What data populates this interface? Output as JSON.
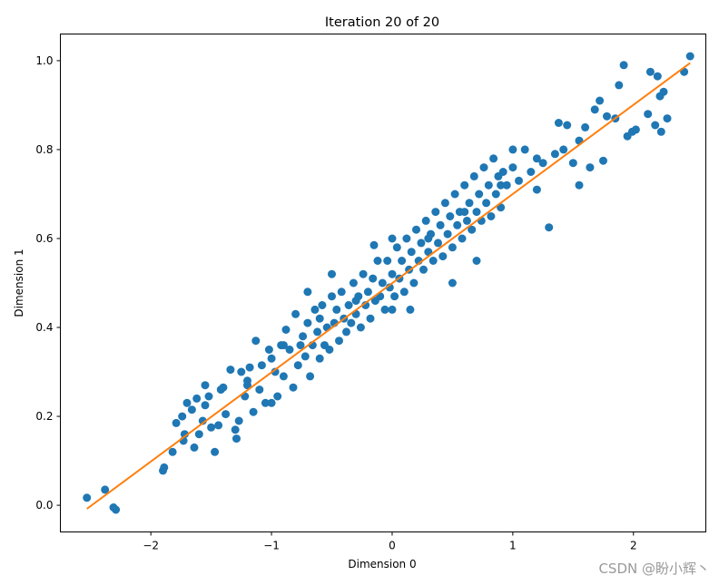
{
  "chart_data": {
    "type": "scatter",
    "title": "Iteration 20 of 20",
    "xlabel": "Dimension 0",
    "ylabel": "Dimension 1",
    "xlim": [
      -2.75,
      2.6
    ],
    "ylim": [
      -0.06,
      1.06
    ],
    "xticks": [
      -2,
      -1,
      0,
      1,
      2
    ],
    "yticks": [
      0.0,
      0.2,
      0.4,
      0.6,
      0.8,
      1.0
    ],
    "xtick_labels": [
      "−2",
      "−1",
      "0",
      "1",
      "2"
    ],
    "ytick_labels": [
      "0.0",
      "0.2",
      "0.4",
      "0.6",
      "0.8",
      "1.0"
    ],
    "grid": false,
    "point_color": "#1f77b4",
    "line_color": "#ff7f0e",
    "points": [
      [
        -2.53,
        0.017
      ],
      [
        -2.38,
        0.035
      ],
      [
        -2.31,
        -0.005
      ],
      [
        -2.29,
        -0.01
      ],
      [
        -1.9,
        0.078
      ],
      [
        -1.89,
        0.085
      ],
      [
        -1.82,
        0.12
      ],
      [
        -1.79,
        0.185
      ],
      [
        -1.74,
        0.2
      ],
      [
        -1.73,
        0.145
      ],
      [
        -1.72,
        0.16
      ],
      [
        -1.7,
        0.23
      ],
      [
        -1.66,
        0.215
      ],
      [
        -1.64,
        0.13
      ],
      [
        -1.62,
        0.24
      ],
      [
        -1.6,
        0.16
      ],
      [
        -1.57,
        0.19
      ],
      [
        -1.55,
        0.225
      ],
      [
        -1.52,
        0.245
      ],
      [
        -1.5,
        0.175
      ],
      [
        -1.47,
        0.12
      ],
      [
        -1.44,
        0.18
      ],
      [
        -1.42,
        0.26
      ],
      [
        -1.4,
        0.265
      ],
      [
        -1.38,
        0.205
      ],
      [
        -1.34,
        0.305
      ],
      [
        -1.3,
        0.17
      ],
      [
        -1.29,
        0.15
      ],
      [
        -1.27,
        0.19
      ],
      [
        -1.25,
        0.3
      ],
      [
        -1.22,
        0.245
      ],
      [
        -1.2,
        0.27
      ],
      [
        -1.18,
        0.31
      ],
      [
        -1.15,
        0.21
      ],
      [
        -1.13,
        0.37
      ],
      [
        -1.1,
        0.26
      ],
      [
        -1.08,
        0.315
      ],
      [
        -1.05,
        0.23
      ],
      [
        -1.02,
        0.35
      ],
      [
        -1.0,
        0.33
      ],
      [
        -0.97,
        0.3
      ],
      [
        -0.95,
        0.245
      ],
      [
        -0.92,
        0.36
      ],
      [
        -0.9,
        0.29
      ],
      [
        -0.88,
        0.395
      ],
      [
        -0.85,
        0.35
      ],
      [
        -0.82,
        0.265
      ],
      [
        -0.8,
        0.43
      ],
      [
        -0.78,
        0.315
      ],
      [
        -0.76,
        0.36
      ],
      [
        -0.74,
        0.38
      ],
      [
        -0.72,
        0.335
      ],
      [
        -0.7,
        0.41
      ],
      [
        -0.68,
        0.29
      ],
      [
        -0.66,
        0.36
      ],
      [
        -0.64,
        0.44
      ],
      [
        -0.62,
        0.39
      ],
      [
        -0.6,
        0.33
      ],
      [
        -0.58,
        0.45
      ],
      [
        -0.56,
        0.36
      ],
      [
        -0.54,
        0.4
      ],
      [
        -0.52,
        0.35
      ],
      [
        -0.5,
        0.47
      ],
      [
        -0.48,
        0.41
      ],
      [
        -0.46,
        0.44
      ],
      [
        -0.44,
        0.37
      ],
      [
        -0.42,
        0.48
      ],
      [
        -0.4,
        0.42
      ],
      [
        -0.38,
        0.39
      ],
      [
        -0.36,
        0.45
      ],
      [
        -0.34,
        0.41
      ],
      [
        -0.32,
        0.5
      ],
      [
        -0.3,
        0.43
      ],
      [
        -0.28,
        0.47
      ],
      [
        -0.26,
        0.4
      ],
      [
        -0.24,
        0.52
      ],
      [
        -0.22,
        0.45
      ],
      [
        -0.2,
        0.48
      ],
      [
        -0.18,
        0.42
      ],
      [
        -0.16,
        0.51
      ],
      [
        -0.14,
        0.46
      ],
      [
        -0.12,
        0.55
      ],
      [
        -0.1,
        0.47
      ],
      [
        -0.08,
        0.5
      ],
      [
        -0.06,
        0.44
      ],
      [
        -0.04,
        0.55
      ],
      [
        -0.02,
        0.49
      ],
      [
        0.0,
        0.52
      ],
      [
        0.02,
        0.47
      ],
      [
        0.04,
        0.58
      ],
      [
        0.06,
        0.51
      ],
      [
        0.08,
        0.55
      ],
      [
        0.1,
        0.48
      ],
      [
        0.12,
        0.6
      ],
      [
        0.14,
        0.53
      ],
      [
        0.16,
        0.57
      ],
      [
        0.18,
        0.5
      ],
      [
        0.2,
        0.62
      ],
      [
        0.22,
        0.55
      ],
      [
        0.24,
        0.59
      ],
      [
        0.26,
        0.53
      ],
      [
        0.28,
        0.64
      ],
      [
        0.3,
        0.57
      ],
      [
        0.32,
        0.61
      ],
      [
        0.34,
        0.55
      ],
      [
        0.36,
        0.66
      ],
      [
        0.38,
        0.59
      ],
      [
        0.4,
        0.63
      ],
      [
        0.42,
        0.56
      ],
      [
        0.44,
        0.68
      ],
      [
        0.46,
        0.61
      ],
      [
        0.48,
        0.65
      ],
      [
        0.5,
        0.58
      ],
      [
        0.52,
        0.7
      ],
      [
        0.54,
        0.63
      ],
      [
        0.56,
        0.66
      ],
      [
        0.58,
        0.6
      ],
      [
        0.6,
        0.72
      ],
      [
        0.62,
        0.64
      ],
      [
        0.64,
        0.68
      ],
      [
        0.66,
        0.62
      ],
      [
        0.68,
        0.74
      ],
      [
        0.7,
        0.66
      ],
      [
        0.72,
        0.7
      ],
      [
        0.74,
        0.64
      ],
      [
        0.76,
        0.76
      ],
      [
        0.78,
        0.68
      ],
      [
        0.8,
        0.72
      ],
      [
        0.82,
        0.65
      ],
      [
        0.84,
        0.78
      ],
      [
        0.86,
        0.7
      ],
      [
        0.88,
        0.74
      ],
      [
        0.9,
        0.67
      ],
      [
        0.92,
        0.75
      ],
      [
        0.95,
        0.72
      ],
      [
        1.0,
        0.76
      ],
      [
        1.05,
        0.73
      ],
      [
        1.1,
        0.8
      ],
      [
        1.15,
        0.75
      ],
      [
        1.2,
        0.71
      ],
      [
        1.25,
        0.77
      ],
      [
        1.3,
        0.625
      ],
      [
        1.35,
        0.79
      ],
      [
        1.38,
        0.86
      ],
      [
        1.42,
        0.8
      ],
      [
        1.45,
        0.855
      ],
      [
        1.5,
        0.77
      ],
      [
        1.55,
        0.82
      ],
      [
        1.6,
        0.85
      ],
      [
        1.64,
        0.76
      ],
      [
        1.68,
        0.89
      ],
      [
        1.72,
        0.91
      ],
      [
        1.75,
        0.775
      ],
      [
        1.78,
        0.875
      ],
      [
        1.85,
        0.87
      ],
      [
        1.88,
        0.945
      ],
      [
        1.92,
        0.99
      ],
      [
        1.95,
        0.83
      ],
      [
        1.99,
        0.84
      ],
      [
        2.02,
        0.845
      ],
      [
        2.12,
        0.88
      ],
      [
        2.14,
        0.975
      ],
      [
        2.18,
        0.855
      ],
      [
        2.2,
        0.965
      ],
      [
        2.22,
        0.92
      ],
      [
        2.23,
        0.84
      ],
      [
        2.25,
        0.93
      ],
      [
        2.28,
        0.87
      ],
      [
        2.42,
        0.975
      ],
      [
        2.47,
        1.01
      ],
      [
        -0.9,
        0.36
      ],
      [
        -0.6,
        0.42
      ],
      [
        -0.3,
        0.46
      ],
      [
        0.3,
        0.6
      ],
      [
        0.6,
        0.66
      ],
      [
        0.9,
        0.72
      ],
      [
        -1.2,
        0.28
      ],
      [
        1.2,
        0.78
      ],
      [
        0.0,
        0.6
      ],
      [
        0.0,
        0.44
      ],
      [
        -0.5,
        0.52
      ],
      [
        0.5,
        0.5
      ],
      [
        -1.0,
        0.23
      ],
      [
        1.0,
        0.8
      ],
      [
        -0.15,
        0.585
      ],
      [
        0.15,
        0.44
      ],
      [
        -0.7,
        0.48
      ],
      [
        0.7,
        0.55
      ],
      [
        -1.55,
        0.27
      ],
      [
        1.55,
        0.72
      ]
    ],
    "fit_line": {
      "x": [
        -2.53,
        2.47
      ],
      "y": [
        -0.008,
        0.995
      ]
    }
  },
  "watermark": "CSDN @盼小辉丶"
}
